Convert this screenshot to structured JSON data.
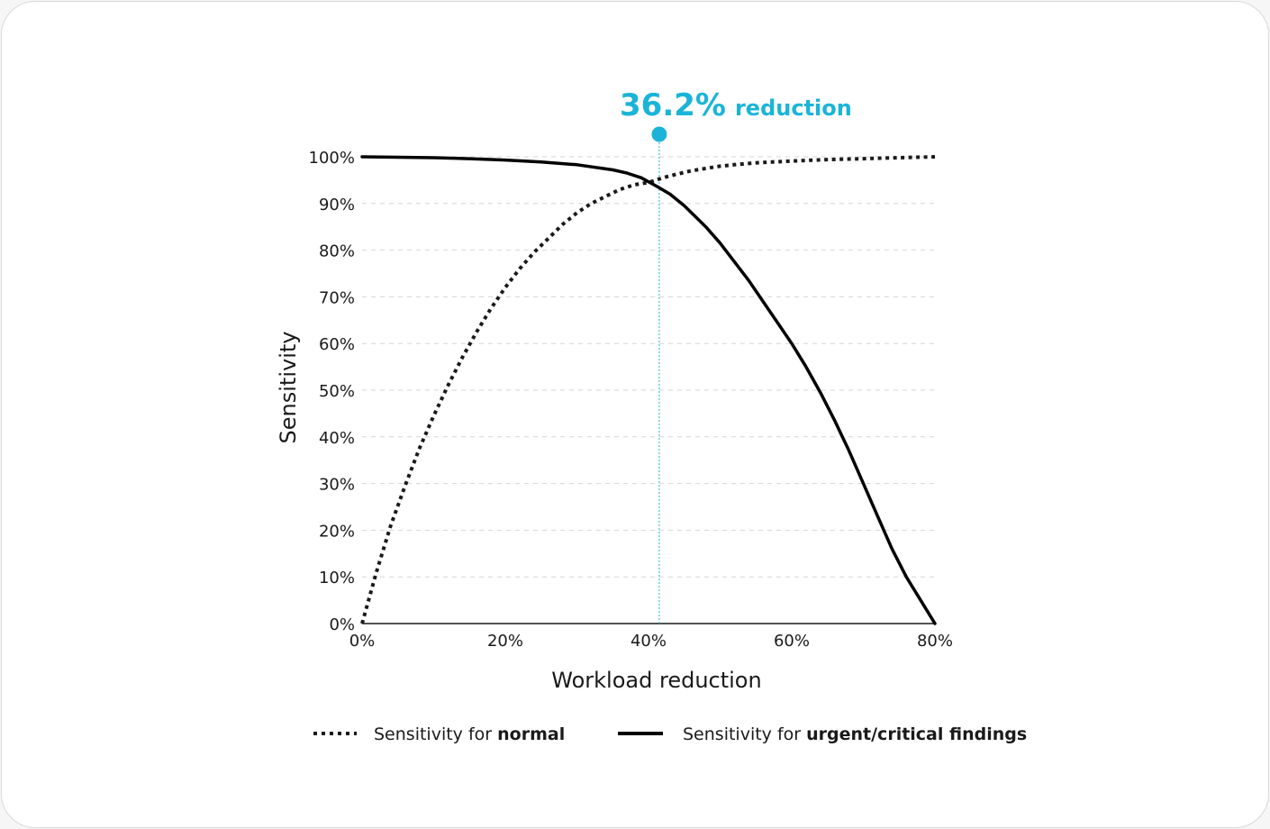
{
  "chart_data": {
    "type": "line",
    "xlabel": "Workload reduction",
    "ylabel": "Sensitivity",
    "xlim": [
      0,
      80
    ],
    "ylim": [
      0,
      100
    ],
    "x_ticks": [
      "0%",
      "20%",
      "40%",
      "60%",
      "80%"
    ],
    "x_tick_values": [
      0,
      20,
      40,
      60,
      80
    ],
    "y_ticks": [
      "0%",
      "10%",
      "20%",
      "30%",
      "40%",
      "50%",
      "60%",
      "70%",
      "80%",
      "90%",
      "100%"
    ],
    "y_tick_values": [
      0,
      10,
      20,
      30,
      40,
      50,
      60,
      70,
      80,
      90,
      100
    ],
    "grid": "horizontal dashed",
    "legend_position": "bottom",
    "series": [
      {
        "name_prefix": "Sensitivity for ",
        "name_emphasis": "normal",
        "style": "dotted",
        "color": "#1a1a1a",
        "x": [
          0,
          2,
          4,
          6,
          8,
          10,
          12,
          14,
          16,
          18,
          20,
          22,
          24,
          26,
          28,
          30,
          32,
          34,
          36,
          38,
          40,
          42,
          44,
          46,
          48,
          50,
          52,
          55,
          60,
          65,
          70,
          75,
          80
        ],
        "y": [
          0,
          11,
          21,
          29.5,
          37.5,
          44.5,
          51,
          57,
          62.5,
          67.5,
          72,
          76,
          79.5,
          82.5,
          85.5,
          88,
          90,
          91.5,
          93,
          94,
          94.5,
          95.5,
          96.3,
          97,
          97.5,
          98,
          98.3,
          98.7,
          99.1,
          99.4,
          99.6,
          99.8,
          100
        ]
      },
      {
        "name_prefix": "Sensitivity for ",
        "name_emphasis": "urgent/critical findings",
        "style": "solid",
        "color": "#000000",
        "x": [
          0,
          5,
          10,
          15,
          20,
          25,
          30,
          35,
          37,
          39,
          41,
          43,
          45,
          48,
          50,
          52,
          54,
          56,
          58,
          60,
          62,
          64,
          66,
          68,
          70,
          72,
          74,
          76,
          78,
          80
        ],
        "y": [
          100,
          99.9,
          99.8,
          99.6,
          99.3,
          98.9,
          98.3,
          97.2,
          96.5,
          95.5,
          93.8,
          92,
          89.5,
          85,
          81.5,
          77.5,
          73.5,
          69,
          64.5,
          60,
          55,
          49.5,
          43.5,
          37,
          30,
          23,
          16,
          10,
          5,
          0
        ]
      }
    ],
    "annotation": {
      "value_text": "36.2%",
      "label_text": "reduction",
      "x": 41.5,
      "color": "#1bb4d8"
    }
  }
}
